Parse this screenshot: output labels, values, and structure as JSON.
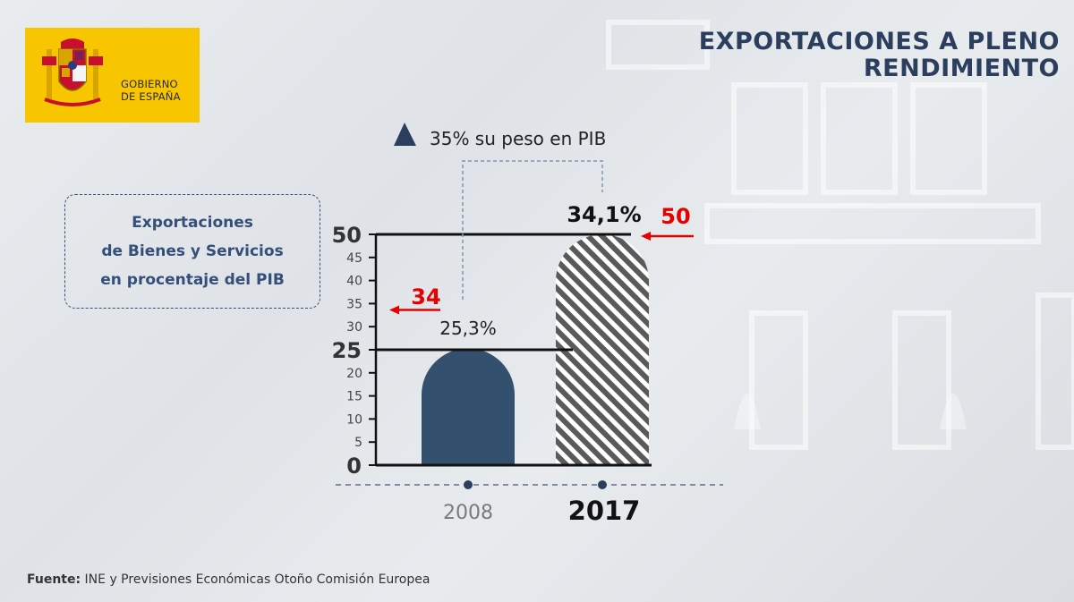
{
  "header": {
    "title_line1": "EXPORTACIONES A PLENO",
    "title_line2": "RENDIMIENTO"
  },
  "logo": {
    "line1": "GOBIERNO",
    "line2": "DE ESPAÑA",
    "icon": "coat-of-arms-icon"
  },
  "legend": {
    "line1": "Exportaciones",
    "line2": "de Bienes y Servicios",
    "line3": "en procentaje del PIB"
  },
  "footer": {
    "source_label": "Fuente:",
    "source_text": "INE y Previsiones Económicas Otoño Comisión Europea"
  },
  "colors": {
    "bar_2008": "#34506f",
    "bar_2017_stripe": "#5a5a5a",
    "accent": "#2c3e5e",
    "annotation_red": "#e60000"
  },
  "chart_data": {
    "type": "bar",
    "categories": [
      "2008",
      "2017"
    ],
    "values": [
      25.3,
      34.1
    ],
    "value_labels": [
      "25,3%",
      "34,1%"
    ],
    "ylim": [
      0,
      50
    ],
    "y_ticks": [
      0,
      5,
      10,
      15,
      20,
      25,
      30,
      35,
      40,
      45,
      50
    ],
    "y_tick_labels": [
      "0",
      "5",
      "10",
      "15",
      "20",
      "25",
      "30",
      "35",
      "40",
      "45",
      "50"
    ],
    "annotation": "35% su peso en PIB",
    "red_annotations": [
      {
        "text": "34",
        "at_y": 34
      },
      {
        "text": "50",
        "at_y": 50
      }
    ],
    "grid": false,
    "xlabel": "",
    "ylabel": ""
  }
}
